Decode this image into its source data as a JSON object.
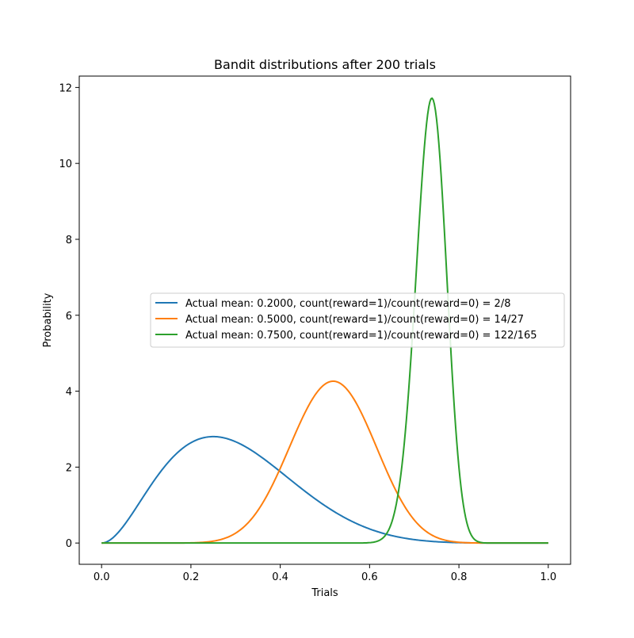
{
  "chart_data": {
    "type": "line",
    "title": "Bandit distributions after 200 trials",
    "xlabel": "Trials",
    "ylabel": "Probability",
    "xlim": [
      -0.05,
      1.05
    ],
    "ylim": [
      -0.56,
      12.3
    ],
    "xticks": [
      0.0,
      0.2,
      0.4,
      0.6,
      0.8,
      1.0
    ],
    "xtick_labels": [
      "0.0",
      "0.2",
      "0.4",
      "0.6",
      "0.8",
      "1.0"
    ],
    "yticks": [
      0,
      2,
      4,
      6,
      8,
      10,
      12
    ],
    "ytick_labels": [
      "0",
      "2",
      "4",
      "6",
      "8",
      "10",
      "12"
    ],
    "grid": false,
    "legend_position": "center-right",
    "series": [
      {
        "name": "Actual mean: 0.2000, count(reward=1)/count(reward=0) = 2/8",
        "color": "#1f77b4",
        "alpha": 3,
        "beta": 7,
        "x": [
          0,
          0.05,
          0.1,
          0.15,
          0.2,
          0.25,
          0.3,
          0.35,
          0.4,
          0.45,
          0.5,
          0.55,
          0.6,
          0.65,
          0.7,
          0.75,
          0.8,
          0.85,
          0.9,
          0.95,
          1.0
        ],
        "y": [
          0,
          0.168,
          0.956,
          1.859,
          2.517,
          2.818,
          2.824,
          2.614,
          2.323,
          1.947,
          1.563,
          1.179,
          0.833,
          0.545,
          0.32,
          0.178,
          0.073,
          0.029,
          0.009,
          0.001,
          0
        ]
      },
      {
        "name": "Actual mean: 0.5000, count(reward=1)/count(reward=0) = 14/27",
        "color": "#ff7f0e",
        "alpha": 15,
        "beta": 14,
        "x": [
          0,
          0.1,
          0.2,
          0.25,
          0.3,
          0.35,
          0.4,
          0.45,
          0.5,
          0.52,
          0.55,
          0.6,
          0.65,
          0.7,
          0.75,
          0.8,
          0.85,
          0.9,
          1.0
        ],
        "y": [
          0,
          0,
          0.005,
          0.037,
          0.16,
          0.58,
          1.52,
          2.98,
          4.18,
          4.28,
          4.05,
          3.0,
          1.68,
          0.72,
          0.22,
          0.05,
          0.007,
          0.001,
          0
        ]
      },
      {
        "name": "Actual mean: 0.7500, count(reward=1)/count(reward=0) = 122/165",
        "color": "#2ca02c",
        "alpha": 123,
        "beta": 44,
        "x": [
          0,
          0.6,
          0.63,
          0.65,
          0.67,
          0.69,
          0.7,
          0.71,
          0.72,
          0.73,
          0.74,
          0.75,
          0.76,
          0.77,
          0.78,
          0.79,
          0.8,
          0.82,
          0.85,
          0.9,
          1.0
        ],
        "y": [
          0,
          0,
          0.05,
          0.3,
          1.3,
          3.8,
          5.7,
          7.9,
          9.9,
          11.3,
          11.7,
          11.2,
          9.6,
          7.2,
          4.8,
          2.8,
          1.4,
          0.3,
          0.01,
          0,
          0
        ]
      }
    ]
  }
}
